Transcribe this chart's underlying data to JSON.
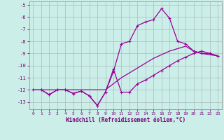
{
  "xlabel": "Windchill (Refroidissement éolien,°C)",
  "bg_color": "#cceee8",
  "line_color": "#990099",
  "grid_color": "#aabbbb",
  "line_no_marker": {
    "x": [
      0,
      1,
      2,
      3,
      4,
      5,
      6,
      7,
      8,
      9,
      10,
      11,
      12,
      13,
      14,
      15,
      16,
      17,
      18,
      19,
      20,
      21,
      22,
      23
    ],
    "y": [
      -12.0,
      -12.0,
      -12.0,
      -12.0,
      -12.0,
      -12.0,
      -12.0,
      -12.0,
      -12.0,
      -12.0,
      -11.5,
      -11.0,
      -10.6,
      -10.2,
      -9.8,
      -9.4,
      -9.1,
      -8.8,
      -8.6,
      -8.4,
      -8.8,
      -9.0,
      -9.1,
      -9.2
    ]
  },
  "line_jagged": {
    "x": [
      0,
      1,
      2,
      3,
      4,
      5,
      6,
      7,
      8,
      9,
      10,
      11,
      12,
      13,
      14,
      15,
      16,
      17,
      18,
      19,
      20,
      21,
      22,
      23
    ],
    "y": [
      -12.0,
      -12.0,
      -12.4,
      -12.0,
      -12.0,
      -12.3,
      -12.1,
      -12.5,
      -13.3,
      -12.2,
      -10.3,
      -12.2,
      -12.2,
      -11.5,
      -11.2,
      -10.8,
      -10.4,
      -10.0,
      -9.6,
      -9.3,
      -9.0,
      -8.8,
      -9.0,
      -9.2
    ]
  },
  "line_peak": {
    "x": [
      1,
      2,
      3,
      4,
      5,
      6,
      7,
      8,
      9,
      10,
      11,
      12,
      13,
      14,
      15,
      16,
      17,
      18,
      19,
      20,
      21,
      22,
      23
    ],
    "y": [
      -12.0,
      -12.4,
      -12.0,
      -12.0,
      -12.3,
      -12.1,
      -12.5,
      -13.3,
      -12.2,
      -10.5,
      -8.2,
      -8.0,
      -6.7,
      -6.4,
      -6.2,
      -5.3,
      -6.1,
      -8.0,
      -8.2,
      -8.8,
      -9.0,
      -9.0,
      -9.2
    ]
  },
  "ylim": [
    -13.6,
    -4.7
  ],
  "xlim": [
    -0.5,
    23.5
  ],
  "yticks": [
    -5,
    -6,
    -7,
    -8,
    -9,
    -10,
    -11,
    -12,
    -13
  ],
  "xticks": [
    0,
    1,
    2,
    3,
    4,
    5,
    6,
    7,
    8,
    9,
    10,
    11,
    12,
    13,
    14,
    15,
    16,
    17,
    18,
    19,
    20,
    21,
    22,
    23
  ]
}
